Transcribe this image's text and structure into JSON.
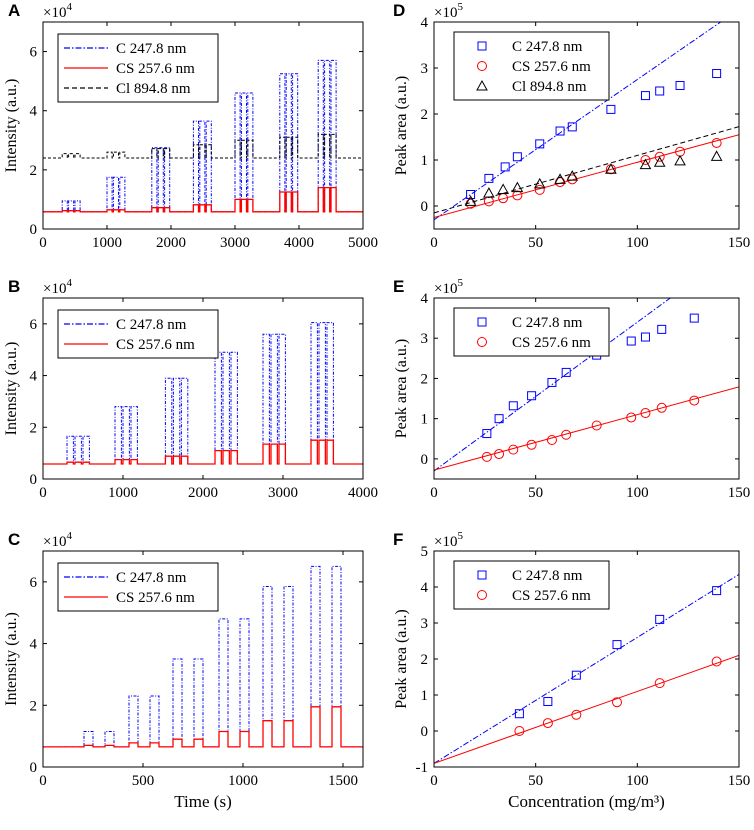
{
  "chart_data": [
    {
      "panel": "A",
      "type": "line",
      "xlabel": "",
      "ylabel": "Intensity (a.u.)",
      "xlim": [
        0,
        5000
      ],
      "ylim": [
        0,
        70000
      ],
      "xticks": [
        0,
        1000,
        2000,
        3000,
        4000,
        5000
      ],
      "xtick_labels": [
        "0",
        "1000",
        "2000",
        "3000",
        "4000",
        "5000"
      ],
      "yticks": [
        0,
        20000,
        40000,
        60000
      ],
      "ytick_labels": [
        "0",
        "2",
        "4",
        "6"
      ],
      "exponent_label": "×10",
      "exponent_power": "4",
      "legend_position": "top-left",
      "signal": {
        "baselines": {
          "C": 5800,
          "CS": 5800,
          "Cl": 24000
        },
        "groups": [
          {
            "start": 300,
            "count": 3,
            "width": 80,
            "gap": 100,
            "levels": {
              "C": 9500,
              "CS": 6200,
              "Cl": 25500
            }
          },
          {
            "start": 1000,
            "count": 3,
            "width": 80,
            "gap": 100,
            "levels": {
              "C": 17500,
              "CS": 6500,
              "Cl": 26000
            }
          },
          {
            "start": 1700,
            "count": 3,
            "width": 80,
            "gap": 100,
            "levels": {
              "C": 27500,
              "CS": 7200,
              "Cl": 27200
            }
          },
          {
            "start": 2350,
            "count": 3,
            "width": 80,
            "gap": 100,
            "levels": {
              "C": 36500,
              "CS": 8200,
              "Cl": 28500
            }
          },
          {
            "start": 3000,
            "count": 3,
            "width": 80,
            "gap": 100,
            "levels": {
              "C": 46000,
              "CS": 10000,
              "Cl": 30000
            }
          },
          {
            "start": 3700,
            "count": 3,
            "width": 80,
            "gap": 100,
            "levels": {
              "C": 52500,
              "CS": 12500,
              "Cl": 31000
            }
          },
          {
            "start": 4300,
            "count": 3,
            "width": 80,
            "gap": 100,
            "levels": {
              "C": 57000,
              "CS": 14000,
              "Cl": 32000
            }
          }
        ]
      },
      "series": [
        {
          "key": "C",
          "name": "C 247.8 nm",
          "color": "#0000ff",
          "style": "dash-dot"
        },
        {
          "key": "CS",
          "name": "CS 257.6 nm",
          "color": "#ff0000",
          "style": "solid"
        },
        {
          "key": "Cl",
          "name": "Cl 894.8 nm",
          "color": "#000000",
          "style": "dashed"
        }
      ]
    },
    {
      "panel": "B",
      "type": "line",
      "xlabel": "",
      "ylabel": "Intensity (a.u.)",
      "xlim": [
        0,
        4000
      ],
      "ylim": [
        0,
        70000
      ],
      "xticks": [
        0,
        1000,
        2000,
        3000,
        4000
      ],
      "xtick_labels": [
        "0",
        "1000",
        "2000",
        "3000",
        "4000"
      ],
      "yticks": [
        0,
        20000,
        40000,
        60000
      ],
      "ytick_labels": [
        "0",
        "2",
        "4",
        "6"
      ],
      "exponent_label": "×10",
      "exponent_power": "4",
      "legend_position": "top-left",
      "signal": {
        "baselines": {
          "C": 5800,
          "CS": 5800
        },
        "groups": [
          {
            "start": 300,
            "count": 3,
            "width": 80,
            "gap": 100,
            "levels": {
              "C": 16500,
              "CS": 6500
            }
          },
          {
            "start": 900,
            "count": 3,
            "width": 80,
            "gap": 100,
            "levels": {
              "C": 28000,
              "CS": 7500
            }
          },
          {
            "start": 1530,
            "count": 3,
            "width": 80,
            "gap": 100,
            "levels": {
              "C": 39000,
              "CS": 8800
            }
          },
          {
            "start": 2150,
            "count": 3,
            "width": 80,
            "gap": 100,
            "levels": {
              "C": 49000,
              "CS": 11000
            }
          },
          {
            "start": 2750,
            "count": 3,
            "width": 80,
            "gap": 100,
            "levels": {
              "C": 56000,
              "CS": 13500
            }
          },
          {
            "start": 3350,
            "count": 3,
            "width": 80,
            "gap": 100,
            "levels": {
              "C": 60500,
              "CS": 15000
            }
          }
        ]
      },
      "series": [
        {
          "key": "C",
          "name": "C 247.8 nm",
          "color": "#0000ff",
          "style": "dash-dot"
        },
        {
          "key": "CS",
          "name": "CS 257.6 nm",
          "color": "#ff0000",
          "style": "solid"
        }
      ]
    },
    {
      "panel": "C",
      "type": "line",
      "xlabel": "Time (s)",
      "ylabel": "Intensity (a.u.)",
      "xlim": [
        0,
        1600
      ],
      "ylim": [
        0,
        70000
      ],
      "xticks": [
        0,
        500,
        1000,
        1500
      ],
      "xtick_labels": [
        "0",
        "500",
        "1000",
        "1500"
      ],
      "yticks": [
        0,
        20000,
        40000,
        60000
      ],
      "ytick_labels": [
        "0",
        "2",
        "4",
        "6"
      ],
      "exponent_label": "×10",
      "exponent_power": "4",
      "legend_position": "top-left",
      "signal": {
        "baselines": {
          "C": 6500,
          "CS": 6500
        },
        "groups": [
          {
            "start": 205,
            "count": 2,
            "width": 45,
            "gap": 105,
            "levels": {
              "C": 11500,
              "CS": 7000
            }
          },
          {
            "start": 430,
            "count": 2,
            "width": 45,
            "gap": 105,
            "levels": {
              "C": 23000,
              "CS": 7800
            }
          },
          {
            "start": 650,
            "count": 2,
            "width": 45,
            "gap": 105,
            "levels": {
              "C": 35000,
              "CS": 9000
            }
          },
          {
            "start": 880,
            "count": 2,
            "width": 45,
            "gap": 105,
            "levels": {
              "C": 48000,
              "CS": 11500
            }
          },
          {
            "start": 1100,
            "count": 2,
            "width": 45,
            "gap": 105,
            "levels": {
              "C": 58500,
              "CS": 15000
            }
          },
          {
            "start": 1340,
            "count": 2,
            "width": 45,
            "gap": 105,
            "levels": {
              "C": 65000,
              "CS": 19500
            }
          }
        ]
      },
      "series": [
        {
          "key": "C",
          "name": "C 247.8 nm",
          "color": "#0000ff",
          "style": "dash-dot"
        },
        {
          "key": "CS",
          "name": "CS 257.6 nm",
          "color": "#ff0000",
          "style": "solid"
        }
      ]
    },
    {
      "panel": "D",
      "type": "scatter",
      "xlabel": "",
      "ylabel": "Peak area (a.u.)",
      "xlim": [
        0,
        150
      ],
      "ylim": [
        -50000,
        400000
      ],
      "xticks": [
        0,
        50,
        100,
        150
      ],
      "xtick_labels": [
        "0",
        "50",
        "100",
        "150"
      ],
      "yticks": [
        0,
        100000,
        200000,
        300000,
        400000
      ],
      "ytick_labels": [
        "0",
        "1",
        "2",
        "3",
        "4"
      ],
      "exponent_label": "×10",
      "exponent_power": "5",
      "legend_position": "top-left",
      "series": [
        {
          "name": "C 247.8 nm",
          "marker": "square",
          "color": "#0000ff",
          "line_style": "dash-dot",
          "fit": {
            "slope": 3050,
            "intercept": -30000
          },
          "x": [
            18,
            27,
            35,
            41,
            52,
            62,
            68,
            87,
            104,
            111,
            121,
            139
          ],
          "y": [
            25000,
            60000,
            85000,
            107000,
            135000,
            163000,
            172000,
            210000,
            240000,
            250000,
            262000,
            288000
          ]
        },
        {
          "name": "CS 257.6 nm",
          "marker": "circle",
          "color": "#ff0000",
          "line_style": "solid",
          "fit": {
            "slope": 1200,
            "intercept": -25000
          },
          "x": [
            18,
            27,
            34,
            41,
            52,
            62,
            68,
            87,
            104,
            111,
            121,
            139
          ],
          "y": [
            5000,
            10000,
            17000,
            23000,
            35000,
            52000,
            58000,
            80000,
            100000,
            107000,
            118000,
            137000
          ]
        },
        {
          "name": "Cl 894.8 nm",
          "marker": "triangle",
          "color": "#000000",
          "line_style": "dashed",
          "fit": {
            "slope": 1250,
            "intercept": -15000
          },
          "x": [
            18,
            27,
            34,
            41,
            52,
            62,
            68,
            87,
            104,
            111,
            121,
            139
          ],
          "y": [
            10000,
            28000,
            36000,
            40000,
            48000,
            58000,
            65000,
            80000,
            90000,
            95000,
            98000,
            108000
          ]
        }
      ]
    },
    {
      "panel": "E",
      "type": "scatter",
      "xlabel": "",
      "ylabel": "Peak area (a.u.)",
      "xlim": [
        0,
        150
      ],
      "ylim": [
        -50000,
        400000
      ],
      "xticks": [
        0,
        50,
        100,
        150
      ],
      "xtick_labels": [
        "0",
        "50",
        "100",
        "150"
      ],
      "yticks": [
        0,
        100000,
        200000,
        300000,
        400000
      ],
      "ytick_labels": [
        "0",
        "1",
        "2",
        "3",
        "4"
      ],
      "exponent_label": "×10",
      "exponent_power": "5",
      "legend_position": "top-left",
      "series": [
        {
          "name": "C 247.8 nm",
          "marker": "square",
          "color": "#0000ff",
          "line_style": "dash-dot",
          "fit": {
            "slope": 3700,
            "intercept": -30000
          },
          "x": [
            26,
            32,
            39,
            48,
            58,
            65,
            80,
            97,
            104,
            112,
            128
          ],
          "y": [
            63000,
            100000,
            132000,
            157000,
            190000,
            215000,
            258000,
            293000,
            303000,
            322000,
            350000
          ]
        },
        {
          "name": "CS 257.6 nm",
          "marker": "circle",
          "color": "#ff0000",
          "line_style": "solid",
          "fit": {
            "slope": 1380,
            "intercept": -28000
          },
          "x": [
            26,
            32,
            39,
            48,
            58,
            65,
            80,
            97,
            104,
            112,
            128
          ],
          "y": [
            5000,
            12000,
            23000,
            35000,
            47000,
            60000,
            83000,
            103000,
            114000,
            127000,
            145000
          ]
        }
      ]
    },
    {
      "panel": "F",
      "type": "scatter",
      "xlabel": "Concentration (mg/m³)",
      "ylabel": "Peak area (a.u.)",
      "xlim": [
        0,
        150
      ],
      "ylim": [
        -100000,
        500000
      ],
      "xticks": [
        0,
        50,
        100,
        150
      ],
      "xtick_labels": [
        "0",
        "50",
        "100",
        "150"
      ],
      "yticks": [
        -100000,
        0,
        100000,
        200000,
        300000,
        400000,
        500000
      ],
      "ytick_labels": [
        "-1",
        "0",
        "1",
        "2",
        "3",
        "4",
        "5"
      ],
      "exponent_label": "×10",
      "exponent_power": "5",
      "legend_position": "top-left",
      "series": [
        {
          "name": "C 247.8 nm",
          "marker": "square",
          "color": "#0000ff",
          "line_style": "dash-dot",
          "fit": {
            "slope": 3500,
            "intercept": -90000
          },
          "x": [
            42,
            56,
            70,
            90,
            111,
            139
          ],
          "y": [
            48000,
            82000,
            155000,
            240000,
            310000,
            390000
          ]
        },
        {
          "name": "CS 257.6 nm",
          "marker": "circle",
          "color": "#ff0000",
          "line_style": "solid",
          "fit": {
            "slope": 2000,
            "intercept": -90000
          },
          "x": [
            42,
            56,
            70,
            90,
            111,
            139
          ],
          "y": [
            0,
            22000,
            45000,
            80000,
            133000,
            193000
          ]
        }
      ]
    }
  ]
}
